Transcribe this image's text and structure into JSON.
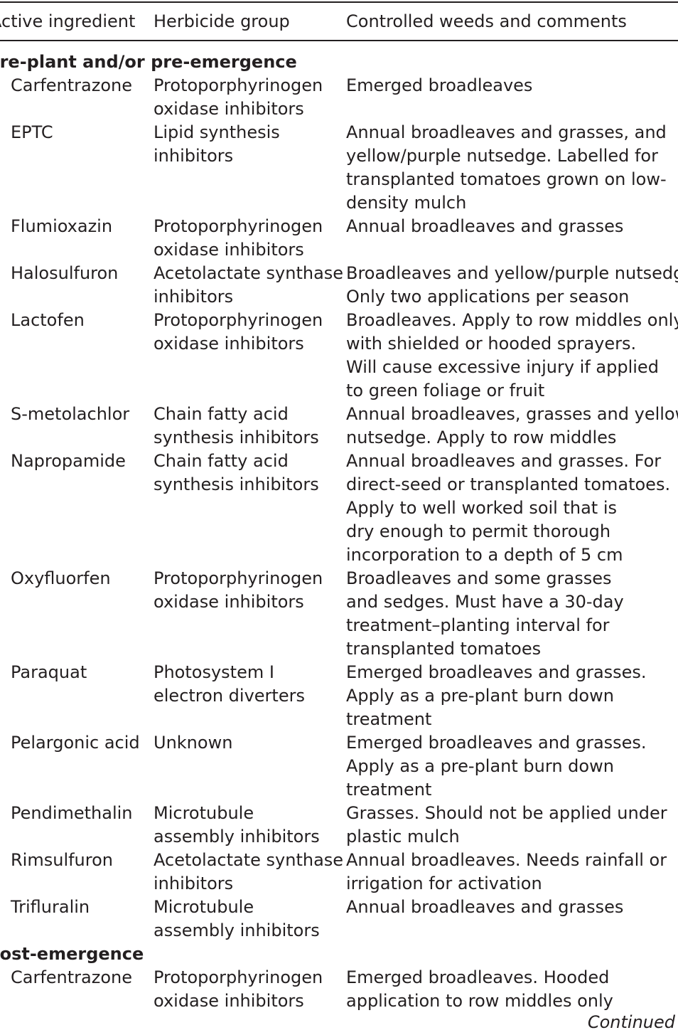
{
  "table": {
    "headers": {
      "active_ingredient": "Active ingredient",
      "herbicide_group": "Herbicide group",
      "controlled_weeds": "Controlled weeds and comments"
    },
    "sections": [
      {
        "title": "Pre-plant and/or pre-emergence",
        "rows": [
          {
            "ingredient": "Carfentrazone",
            "group": [
              "Protoporphyrinogen",
              "oxidase inhibitors"
            ],
            "comments": [
              "Emerged broadleaves"
            ]
          },
          {
            "ingredient": "EPTC",
            "group": [
              "Lipid synthesis",
              "inhibitors"
            ],
            "comments": [
              "Annual broadleaves and grasses, and",
              "yellow/purple nutsedge. Labelled for",
              "transplanted tomatoes grown on low-",
              "density mulch"
            ]
          },
          {
            "ingredient": "Flumioxazin",
            "group": [
              "Protoporphyrinogen",
              "oxidase inhibitors"
            ],
            "comments": [
              "Annual broadleaves and grasses"
            ]
          },
          {
            "ingredient": "Halosulfuron",
            "group": [
              "Acetolactate synthase",
              "inhibitors"
            ],
            "comments": [
              "Broadleaves and yellow/purple nutsedge.",
              "Only two applications per season"
            ]
          },
          {
            "ingredient": "Lactofen",
            "group": [
              "Protoporphyrinogen",
              "oxidase inhibitors"
            ],
            "comments": [
              "Broadleaves. Apply to row middles only",
              "with shielded or hooded sprayers.",
              "Will cause excessive injury if applied",
              "to green foliage or fruit"
            ]
          },
          {
            "ingredient": "S-metolachlor",
            "group": [
              "Chain fatty acid",
              "synthesis inhibitors"
            ],
            "comments": [
              "Annual broadleaves, grasses and yellow",
              "nutsedge. Apply to row middles"
            ]
          },
          {
            "ingredient": "Napropamide",
            "group": [
              "Chain fatty acid",
              "synthesis inhibitors"
            ],
            "comments": [
              "Annual broadleaves and grasses. For",
              "direct-seed or transplanted tomatoes.",
              "Apply to well worked soil that is",
              "dry enough to permit thorough",
              "incorporation to a depth of 5 cm"
            ]
          },
          {
            "ingredient": "Oxyfluorfen",
            "group": [
              "Protoporphyrinogen",
              "oxidase inhibitors"
            ],
            "comments": [
              "Broadleaves and some grasses",
              "and sedges. Must have a 30-day",
              "treatment–planting interval for",
              "transplanted tomatoes"
            ]
          },
          {
            "ingredient": "Paraquat",
            "group": [
              "Photosystem I",
              "electron diverters"
            ],
            "comments": [
              "Emerged broadleaves and grasses.",
              "Apply as a pre-plant burn down",
              "treatment"
            ]
          },
          {
            "ingredient": "Pelargonic acid",
            "group": [
              "Unknown"
            ],
            "comments": [
              "Emerged broadleaves and grasses.",
              "Apply as a pre-plant burn down",
              "treatment"
            ]
          },
          {
            "ingredient": "Pendimethalin",
            "group": [
              "Microtubule",
              "assembly inhibitors"
            ],
            "comments": [
              "Grasses. Should not be applied under",
              "plastic mulch"
            ]
          },
          {
            "ingredient": "Rimsulfuron",
            "group": [
              "Acetolactate synthase",
              "inhibitors"
            ],
            "comments": [
              "Annual broadleaves. Needs rainfall or",
              "irrigation for activation"
            ]
          },
          {
            "ingredient": "Trifluralin",
            "group": [
              "Microtubule",
              "assembly inhibitors"
            ],
            "comments": [
              "Annual broadleaves and grasses"
            ]
          }
        ]
      },
      {
        "title": "Post-emergence",
        "rows": [
          {
            "ingredient": "Carfentrazone",
            "group": [
              "Protoporphyrinogen",
              "oxidase inhibitors"
            ],
            "comments": [
              "Emerged broadleaves. Hooded",
              "application to row middles only"
            ]
          }
        ]
      }
    ]
  },
  "footer": {
    "continued": "Continued"
  }
}
